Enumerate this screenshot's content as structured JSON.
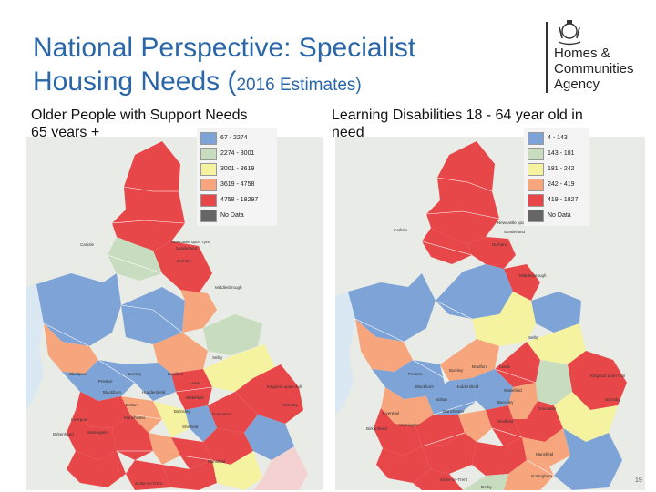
{
  "slide": {
    "title_main": "National Perspective: Specialist Housing Needs (",
    "title_small": "2016 Estimates)",
    "logo_text": [
      "Homes &",
      "Communities",
      "Agency"
    ],
    "page_number": "19"
  },
  "left_map": {
    "label": "Older People with Support Needs 65 years +",
    "legend": [
      {
        "range": "67 - 2274",
        "color": "#7ea3d6"
      },
      {
        "range": "2274 - 3001",
        "color": "#c8dcbf"
      },
      {
        "range": "3001 - 3619",
        "color": "#f5f2a0"
      },
      {
        "range": "3619 - 4758",
        "color": "#f6a57c"
      },
      {
        "range": "4758 - 18297",
        "color": "#e8474a"
      },
      {
        "range": "No Data",
        "color": "#666666"
      }
    ],
    "places": [
      "Newcastle upon Tyne",
      "Sunderland",
      "Carlisle",
      "Durham",
      "Middlesbrough",
      "Selby",
      "Blackpool",
      "Preston",
      "Burnley",
      "Bradford",
      "Leeds",
      "Kingston upon Hull",
      "Blackburn",
      "Huddersfield",
      "Wakefield",
      "Grimsby",
      "Bolton",
      "Barnsley",
      "Liverpool",
      "Manchester",
      "Doncaster",
      "Warrington",
      "Sheffield",
      "Birkenhead",
      "Mansfield",
      "Stoke-on-Trent"
    ]
  },
  "right_map": {
    "label": "Learning Disabilities 18 - 64 year old in need",
    "legend": [
      {
        "range": "4 - 143",
        "color": "#7ea3d6"
      },
      {
        "range": "143 - 181",
        "color": "#c8dcbf"
      },
      {
        "range": "181 - 242",
        "color": "#f5f2a0"
      },
      {
        "range": "242 - 419",
        "color": "#f6a57c"
      },
      {
        "range": "419 - 1827",
        "color": "#e8474a"
      },
      {
        "range": "No Data",
        "color": "#666666"
      }
    ],
    "places": [
      "Newcastle upon Tyne",
      "Sunderland",
      "Carlisle",
      "Durham",
      "Middlesbrough",
      "Selby",
      "Preston",
      "Burnley",
      "Bradford",
      "Leeds",
      "Kingston upon Hull",
      "Blackburn",
      "Huddersfield",
      "Wakefield",
      "Grimsby",
      "Bolton",
      "Barnsley",
      "Liverpool",
      "Manchester",
      "Doncaster",
      "Warrington",
      "Sheffield",
      "Birkenhead",
      "Mansfield",
      "Nottingham",
      "Stoke-on-Trent",
      "Derby"
    ]
  },
  "colors": {
    "title": "#2a66a8",
    "high": "#e8474a",
    "medium_high": "#f6a57c",
    "medium": "#f5f2a0",
    "medium_low": "#c8dcbf",
    "low": "#7ea3d6",
    "no_data": "#666666"
  }
}
